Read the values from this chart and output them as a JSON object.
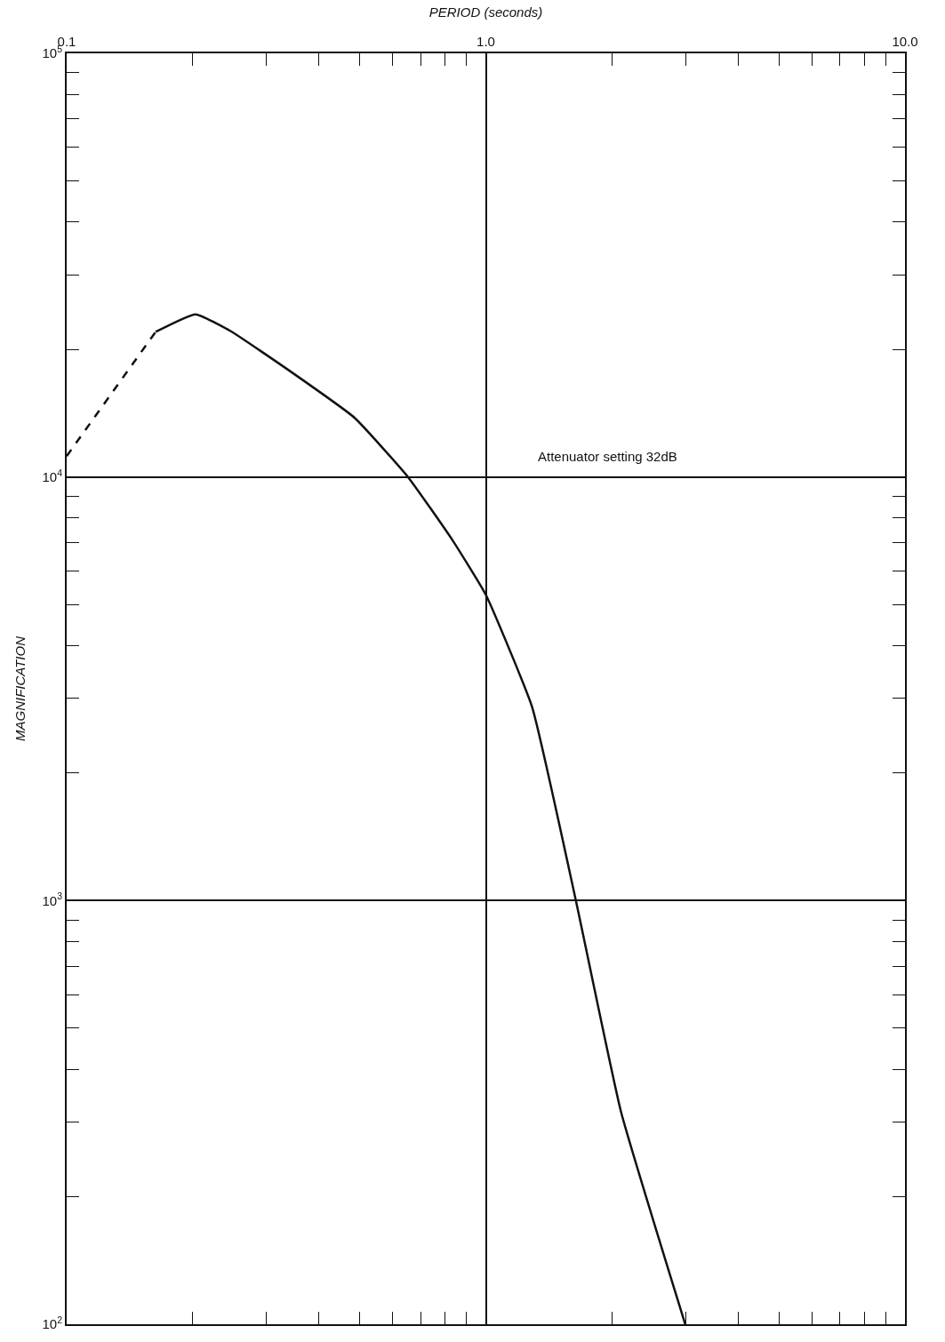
{
  "chart_data": {
    "type": "line",
    "xlabel": "PERIOD (seconds)",
    "ylabel": "MAGNIFICATION",
    "log": "xy",
    "grid": true,
    "marker": "none",
    "series": [
      {
        "color": "#111111",
        "line_style": "dashed",
        "x": [
          0.1,
          0.163
        ],
        "values": [
          11200,
          22000
        ]
      },
      {
        "color": "#111111",
        "line_style": "solid",
        "x": [
          0.163,
          0.203,
          0.246,
          0.346,
          0.486,
          0.652,
          0.832,
          1.0,
          1.29,
          1.64,
          2.1,
          2.99
        ],
        "values": [
          22000,
          24200,
          22100,
          17600,
          13800,
          10000,
          7100,
          5270,
          2860,
          1000,
          318,
          100
        ]
      }
    ],
    "xlim": [
      0.1,
      10
    ],
    "xticks": [
      {
        "value": 0.1,
        "label": "0.1"
      },
      {
        "value": 0.2,
        "label": null
      },
      {
        "value": 0.3,
        "label": null
      },
      {
        "value": 0.4,
        "label": null
      },
      {
        "value": 0.5,
        "label": null
      },
      {
        "value": 0.6,
        "label": null
      },
      {
        "value": 0.7,
        "label": null
      },
      {
        "value": 0.8,
        "label": null
      },
      {
        "value": 0.9,
        "label": null
      },
      {
        "value": 1,
        "label": "1.0"
      },
      {
        "value": 2,
        "label": null
      },
      {
        "value": 3,
        "label": null
      },
      {
        "value": 4,
        "label": null
      },
      {
        "value": 5,
        "label": null
      },
      {
        "value": 6,
        "label": null
      },
      {
        "value": 7,
        "label": null
      },
      {
        "value": 8,
        "label": null
      },
      {
        "value": 9,
        "label": null
      },
      {
        "value": 10,
        "label": "10.0"
      }
    ],
    "ylim": [
      100,
      100000
    ],
    "yticks": [
      {
        "value": 100,
        "label": "10$^{2}$"
      },
      {
        "value": 200,
        "label": null
      },
      {
        "value": 300,
        "label": null
      },
      {
        "value": 400,
        "label": null
      },
      {
        "value": 500,
        "label": null
      },
      {
        "value": 600,
        "label": null
      },
      {
        "value": 700,
        "label": null
      },
      {
        "value": 800,
        "label": null
      },
      {
        "value": 900,
        "label": null
      },
      {
        "value": 1000,
        "label": "10$^{3}$"
      },
      {
        "value": 2000,
        "label": null
      },
      {
        "value": 3000,
        "label": null
      },
      {
        "value": 4000,
        "label": null
      },
      {
        "value": 5000,
        "label": null
      },
      {
        "value": 6000,
        "label": null
      },
      {
        "value": 7000,
        "label": null
      },
      {
        "value": 8000,
        "label": null
      },
      {
        "value": 9000,
        "label": null
      },
      {
        "value": 10000,
        "label": "10$^{4}$"
      },
      {
        "value": 20000,
        "label": null
      },
      {
        "value": 30000,
        "label": null
      },
      {
        "value": 40000,
        "label": null
      },
      {
        "value": 50000,
        "label": null
      },
      {
        "value": 60000,
        "label": null
      },
      {
        "value": 70000,
        "label": null
      },
      {
        "value": 80000,
        "label": null
      },
      {
        "value": 90000,
        "label": null
      },
      {
        "value": 100000,
        "label": "10$^{5}$"
      }
    ],
    "annotations": [
      "Attenuator setting 32dB"
    ]
  }
}
